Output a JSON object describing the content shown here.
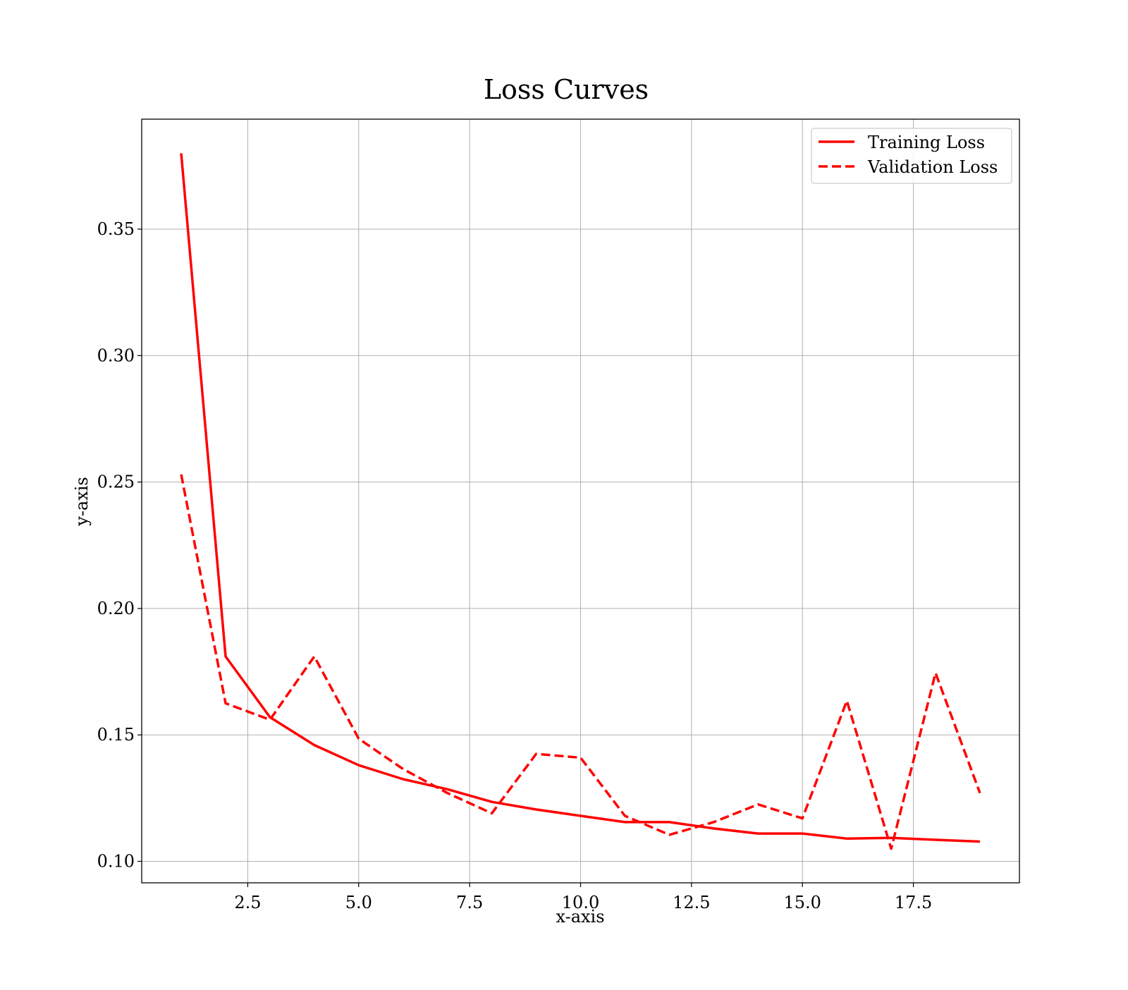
{
  "chart_data": {
    "type": "line",
    "title": "Loss Curves",
    "xlabel": "x-axis",
    "ylabel": "y-axis",
    "xlim": [
      0.11,
      19.89
    ],
    "ylim": [
      0.0915,
      0.3935
    ],
    "xticks": [
      2.5,
      5.0,
      7.5,
      10.0,
      12.5,
      15.0,
      17.5
    ],
    "xtick_labels": [
      "2.5",
      "5.0",
      "7.5",
      "10.0",
      "12.5",
      "15.0",
      "17.5"
    ],
    "yticks": [
      0.1,
      0.15,
      0.2,
      0.25,
      0.3,
      0.35
    ],
    "ytick_labels": [
      "0.10",
      "0.15",
      "0.20",
      "0.25",
      "0.30",
      "0.35"
    ],
    "grid": true,
    "legend_position": "top-right",
    "x": [
      1,
      2,
      3,
      4,
      5,
      6,
      7,
      8,
      9,
      10,
      11,
      12,
      13,
      14,
      15,
      16,
      17,
      18,
      19
    ],
    "series": [
      {
        "name": "Training Loss",
        "style": "solid",
        "color": "#ff0000",
        "values": [
          0.38,
          0.181,
          0.157,
          0.146,
          0.138,
          0.1325,
          0.1285,
          0.1235,
          0.1205,
          0.118,
          0.1155,
          0.1155,
          0.113,
          0.111,
          0.111,
          0.109,
          0.1093,
          0.1085,
          0.1078
        ]
      },
      {
        "name": "Validation Loss",
        "style": "dashed",
        "color": "#ff0000",
        "values": [
          0.253,
          0.1625,
          0.156,
          0.181,
          0.1485,
          0.1365,
          0.127,
          0.119,
          0.1425,
          0.141,
          0.118,
          0.1105,
          0.1155,
          0.1225,
          0.117,
          0.1635,
          0.105,
          0.1745,
          0.127
        ]
      }
    ]
  }
}
